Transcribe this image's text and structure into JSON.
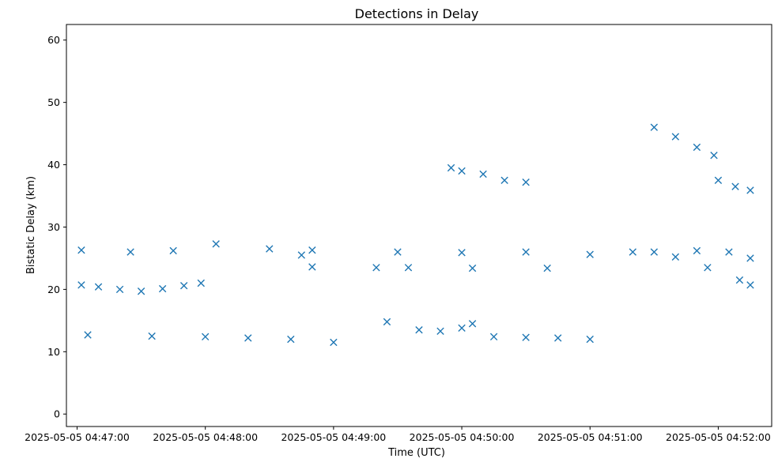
{
  "chart_data": {
    "type": "scatter",
    "title": "Detections in Delay",
    "xlabel": "Time (UTC)",
    "ylabel": "Bistatic Delay (km)",
    "xlim": [
      "2025-05-05 04:46:55",
      "2025-05-05 04:52:25"
    ],
    "ylim": [
      -2,
      62.5
    ],
    "x_ticks": [
      "2025-05-05 04:47:00",
      "2025-05-05 04:48:00",
      "2025-05-05 04:49:00",
      "2025-05-05 04:50:00",
      "2025-05-05 04:51:00",
      "2025-05-05 04:52:00"
    ],
    "y_ticks": [
      0,
      10,
      20,
      30,
      40,
      50,
      60
    ],
    "marker": "x",
    "grid": false,
    "legend": "none",
    "colors": {
      "series": "#1f77b4",
      "axes": "#000000",
      "background": "#ffffff"
    },
    "tracks": [
      {
        "points": [
          [
            "2025-05-05 04:47:02",
            20.7
          ],
          [
            "2025-05-05 04:47:10",
            20.4
          ],
          [
            "2025-05-05 04:47:20",
            20.0
          ],
          [
            "2025-05-05 04:47:30",
            19.7
          ],
          [
            "2025-05-05 04:47:40",
            20.1
          ],
          [
            "2025-05-05 04:47:50",
            20.6
          ],
          [
            "2025-05-05 04:47:58",
            21.0
          ]
        ]
      },
      {
        "points": [
          [
            "2025-05-05 04:47:02",
            26.3
          ],
          [
            "2025-05-05 04:47:25",
            26.0
          ],
          [
            "2025-05-05 04:47:45",
            26.2
          ],
          [
            "2025-05-05 04:48:05",
            27.3
          ],
          [
            "2025-05-05 04:48:30",
            26.5
          ],
          [
            "2025-05-05 04:48:45",
            25.5
          ]
        ]
      },
      {
        "points": [
          [
            "2025-05-05 04:47:05",
            12.7
          ],
          [
            "2025-05-05 04:47:35",
            12.5
          ],
          [
            "2025-05-05 04:48:00",
            12.4
          ],
          [
            "2025-05-05 04:48:20",
            12.2
          ],
          [
            "2025-05-05 04:48:40",
            12.0
          ],
          [
            "2025-05-05 04:49:00",
            11.5
          ]
        ]
      },
      {
        "points": [
          [
            "2025-05-05 04:48:50",
            26.3
          ],
          [
            "2025-05-05 04:49:30",
            26.0
          ],
          [
            "2025-05-05 04:50:00",
            25.9
          ],
          [
            "2025-05-05 04:50:30",
            26.0
          ],
          [
            "2025-05-05 04:51:00",
            25.6
          ]
        ]
      },
      {
        "points": [
          [
            "2025-05-05 04:49:25",
            14.8
          ],
          [
            "2025-05-05 04:49:40",
            13.5
          ],
          [
            "2025-05-05 04:49:50",
            13.3
          ],
          [
            "2025-05-05 04:50:00",
            13.8
          ],
          [
            "2025-05-05 04:50:05",
            14.5
          ]
        ]
      },
      {
        "points": [
          [
            "2025-05-05 04:48:50",
            23.6
          ],
          [
            "2025-05-05 04:49:20",
            23.5
          ],
          [
            "2025-05-05 04:49:35",
            23.5
          ],
          [
            "2025-05-05 04:50:05",
            23.4
          ],
          [
            "2025-05-05 04:50:40",
            23.4
          ]
        ]
      },
      {
        "points": [
          [
            "2025-05-05 04:50:15",
            12.4
          ],
          [
            "2025-05-05 04:50:30",
            12.3
          ],
          [
            "2025-05-05 04:50:45",
            12.2
          ],
          [
            "2025-05-05 04:51:00",
            12.0
          ]
        ]
      },
      {
        "points": [
          [
            "2025-05-05 04:51:20",
            26.0
          ],
          [
            "2025-05-05 04:51:40",
            25.2
          ],
          [
            "2025-05-05 04:51:55",
            23.5
          ],
          [
            "2025-05-05 04:52:10",
            21.5
          ],
          [
            "2025-05-05 04:52:15",
            20.7
          ]
        ]
      },
      {
        "points": [
          [
            "2025-05-05 04:51:30",
            26.0
          ],
          [
            "2025-05-05 04:51:50",
            26.2
          ],
          [
            "2025-05-05 04:52:05",
            26.0
          ],
          [
            "2025-05-05 04:52:15",
            25.0
          ]
        ]
      },
      {
        "points": [
          [
            "2025-05-05 04:52:00",
            37.5
          ],
          [
            "2025-05-05 04:52:08",
            36.5
          ],
          [
            "2025-05-05 04:52:15",
            35.9
          ]
        ]
      },
      {
        "points": [
          [
            "2025-05-05 04:49:55",
            39.5
          ],
          [
            "2025-05-05 04:50:00",
            39.0
          ],
          [
            "2025-05-05 04:50:10",
            38.5
          ],
          [
            "2025-05-05 04:50:20",
            37.5
          ],
          [
            "2025-05-05 04:50:30",
            37.2
          ]
        ]
      },
      {
        "points": [
          [
            "2025-05-05 04:51:30",
            46.0
          ],
          [
            "2025-05-05 04:51:40",
            44.5
          ],
          [
            "2025-05-05 04:51:50",
            42.8
          ],
          [
            "2025-05-05 04:51:58",
            41.5
          ]
        ]
      }
    ]
  }
}
